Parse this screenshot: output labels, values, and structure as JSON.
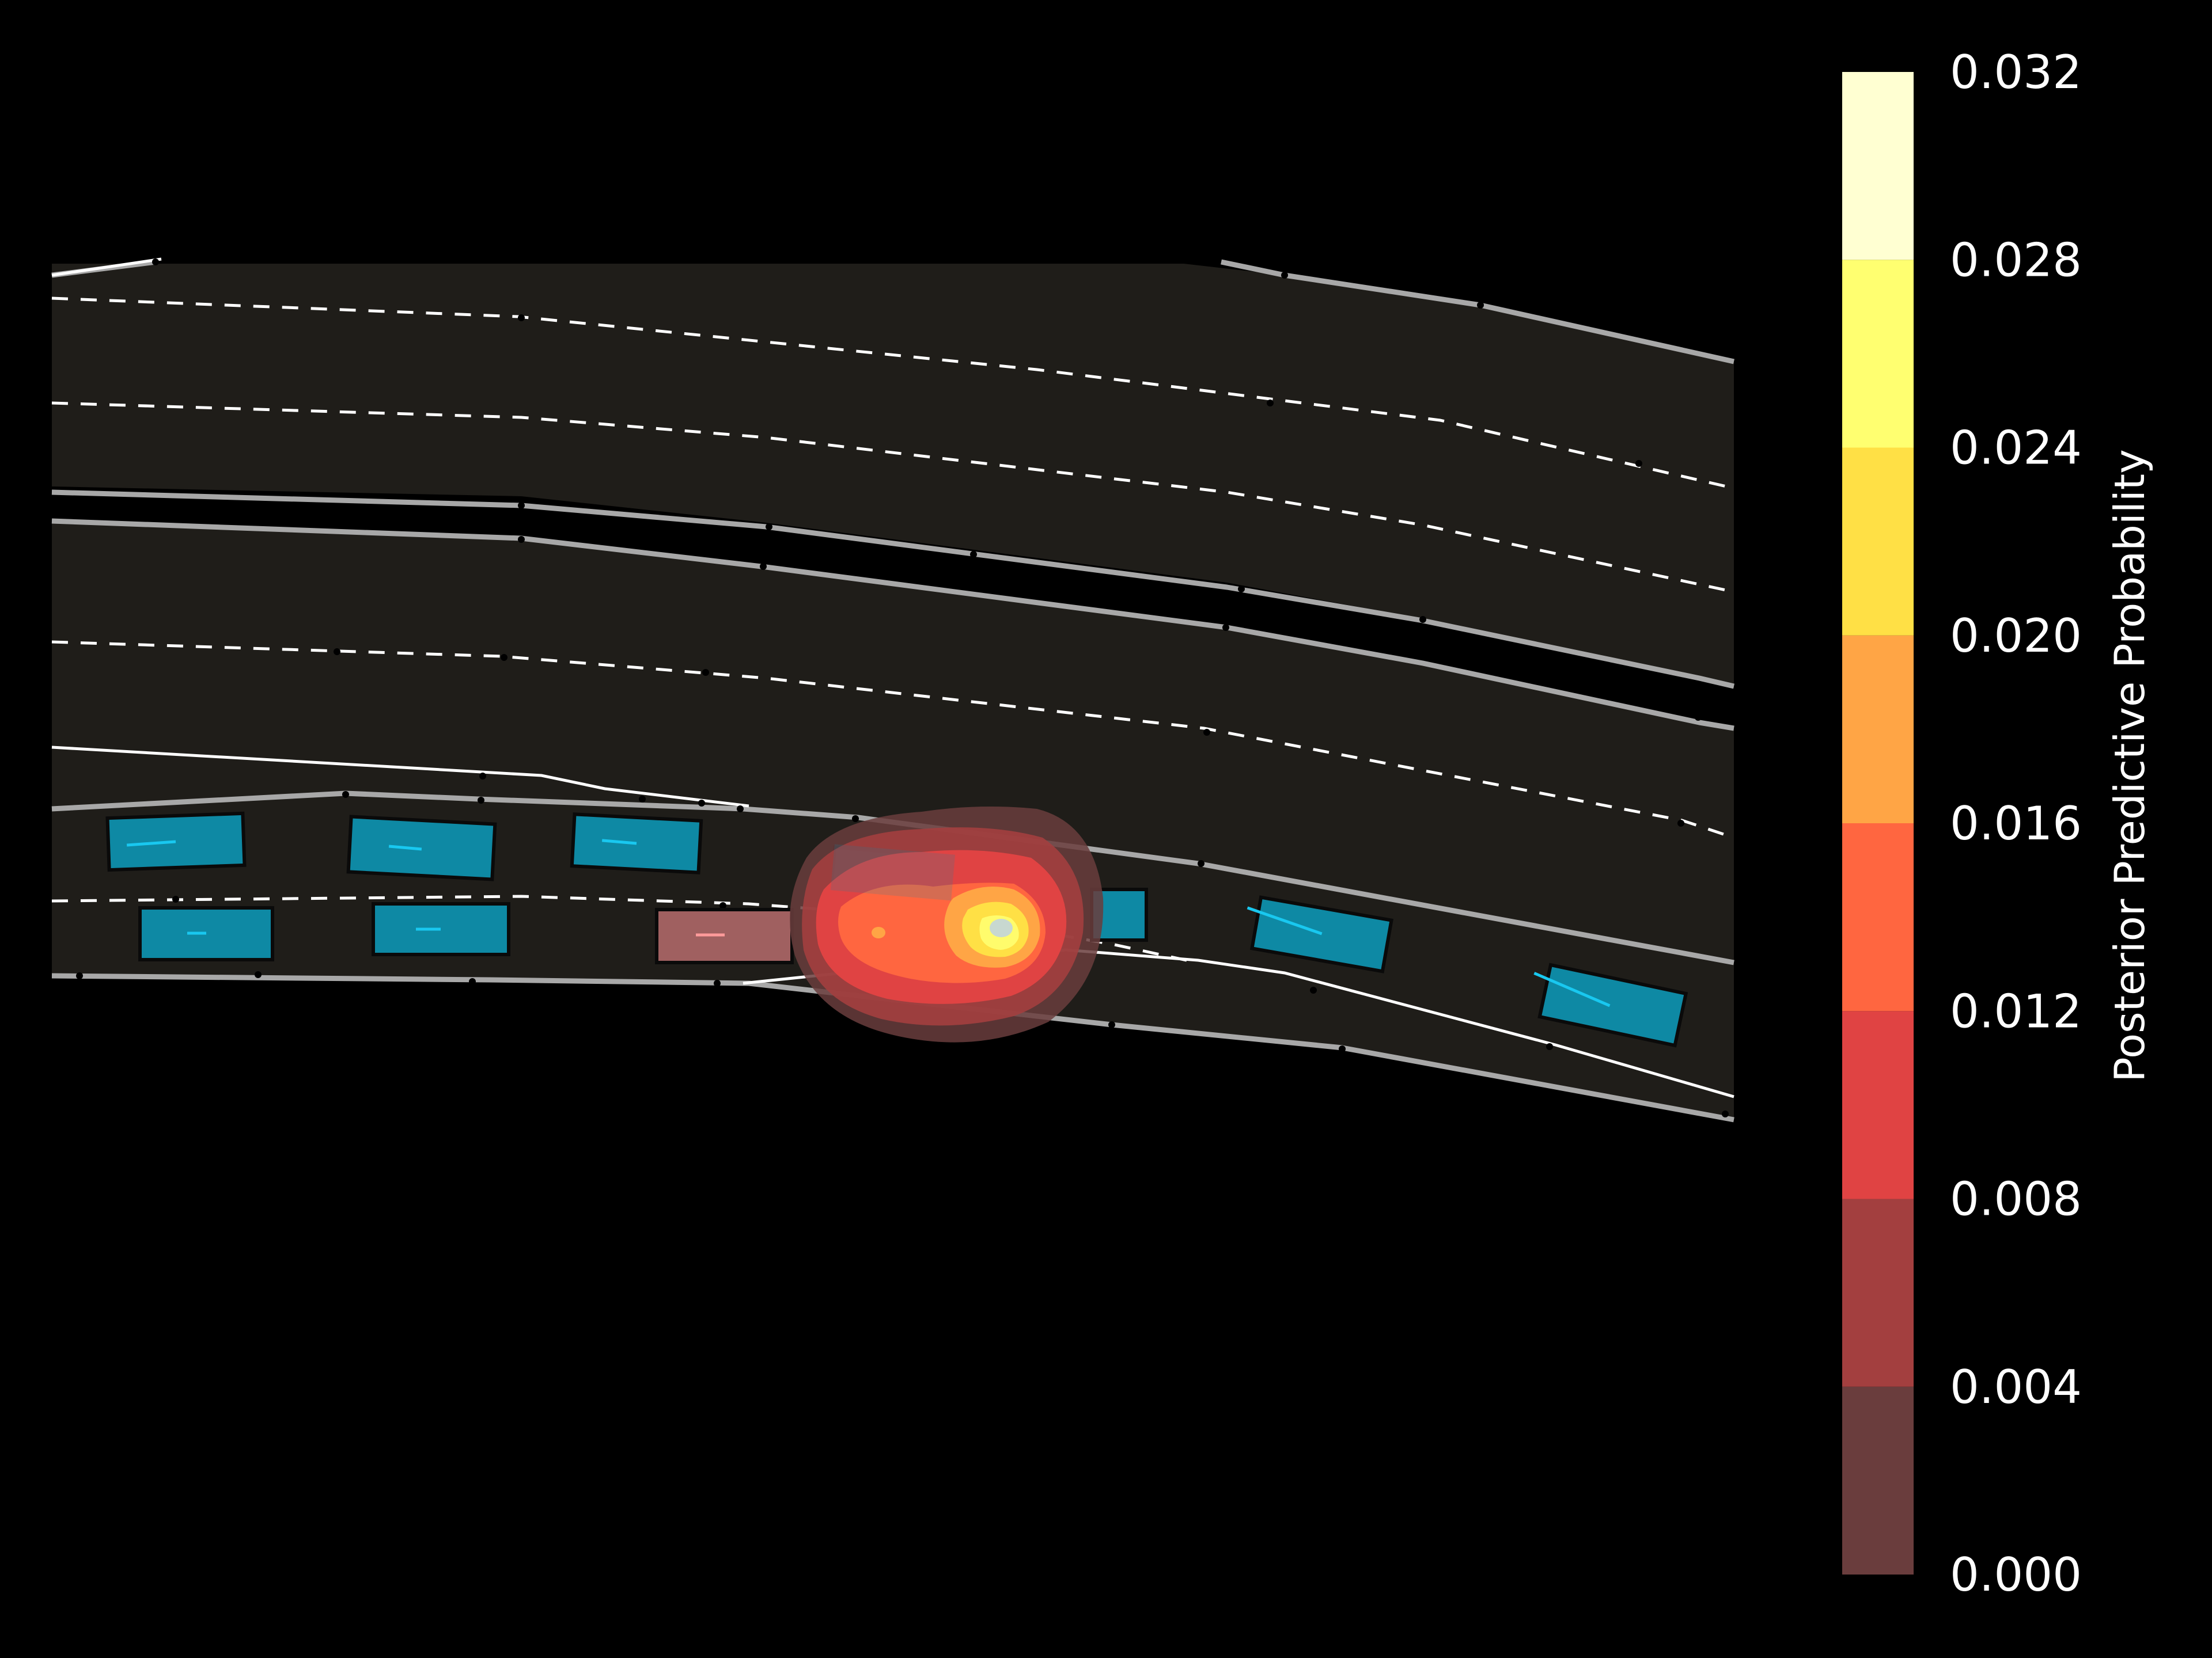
{
  "colorbar": {
    "label": "Posterior Predictive Probability",
    "ticks": [
      "0.032",
      "0.028",
      "0.024",
      "0.020",
      "0.016",
      "0.012",
      "0.008",
      "0.004",
      "0.000"
    ],
    "levels": [
      {
        "from": 0.0,
        "to": 0.004,
        "color": "#6a3d3d"
      },
      {
        "from": 0.004,
        "to": 0.008,
        "color": "#a33f3f"
      },
      {
        "from": 0.008,
        "to": 0.012,
        "color": "#e04343"
      },
      {
        "from": 0.012,
        "to": 0.016,
        "color": "#ff6640"
      },
      {
        "from": 0.016,
        "to": 0.02,
        "color": "#ffa545"
      },
      {
        "from": 0.02,
        "to": 0.024,
        "color": "#ffe045"
      },
      {
        "from": 0.024,
        "to": 0.028,
        "color": "#ffff70"
      },
      {
        "from": 0.028,
        "to": 0.032,
        "color": "#ffffd2"
      }
    ]
  },
  "scene": {
    "road_color": "#1f1d19",
    "vehicle_color": "#0e89a4",
    "heading_color": "#19c8f0",
    "ego_color": "#a06060",
    "boundary_color": "#a8a8a8",
    "lane_marking_color": "#ffffff"
  }
}
